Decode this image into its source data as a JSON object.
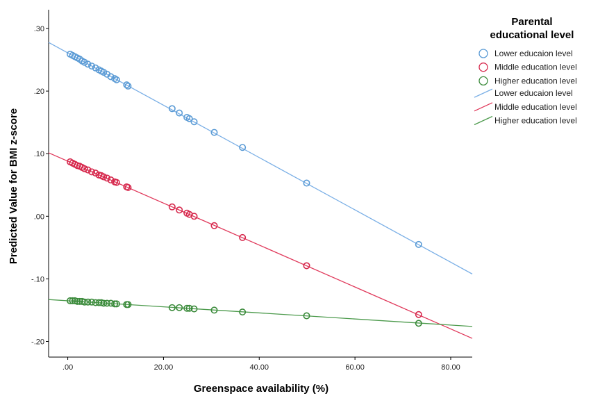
{
  "chart_data": {
    "type": "scatter",
    "title": "",
    "xlabel": "Greenspace availability (%)",
    "ylabel": "Predicted Value for BMI z-score",
    "xlim": [
      -4,
      84.5
    ],
    "ylim": [
      -0.225,
      0.33
    ],
    "x_ticks": [
      0,
      20,
      40,
      60,
      80
    ],
    "x_tick_labels": [
      ".00",
      "20.00",
      "40.00",
      "60.00",
      "80.00"
    ],
    "y_ticks": [
      0.3,
      0.2,
      0.1,
      0.0,
      -0.1,
      -0.2
    ],
    "y_tick_labels": [
      ".30",
      ".20",
      ".10",
      ".00",
      "-.10",
      "-.20"
    ],
    "grid": false,
    "legend": {
      "title": "Parental educational level",
      "title_lines": [
        "Parental",
        "educational level"
      ],
      "placement": "right"
    },
    "series": [
      {
        "name": "Lower educaion level",
        "line_name": "Lower educaion level",
        "color": "#5b9bd5",
        "line_color": "#7aafe6",
        "fit": {
          "intercept": 0.261,
          "slope": -0.00418
        },
        "x": [
          0.5,
          1.0,
          1.5,
          2.0,
          2.5,
          3.0,
          3.5,
          4.2,
          5.0,
          5.8,
          6.5,
          7.0,
          7.5,
          8.2,
          9.0,
          9.8,
          10.2,
          12.3,
          12.6,
          21.8,
          23.3,
          24.9,
          25.4,
          26.4,
          30.6,
          36.5,
          49.9,
          73.3
        ],
        "values": [
          0.259,
          0.257,
          0.255,
          0.253,
          0.251,
          0.248,
          0.246,
          0.243,
          0.24,
          0.237,
          0.234,
          0.232,
          0.23,
          0.227,
          0.223,
          0.22,
          0.218,
          0.21,
          0.208,
          0.172,
          0.165,
          0.158,
          0.156,
          0.151,
          0.134,
          0.11,
          0.053,
          -0.045
        ]
      },
      {
        "name": "Middle education level",
        "line_name": "Middle education level",
        "color": "#d6294d",
        "line_color": "#e0385a",
        "fit": {
          "intercept": 0.088,
          "slope": -0.00335
        },
        "x": [
          0.5,
          1.0,
          1.5,
          2.0,
          2.5,
          3.0,
          3.5,
          4.2,
          5.0,
          5.8,
          6.5,
          7.0,
          7.5,
          8.2,
          9.0,
          9.8,
          10.2,
          12.3,
          12.6,
          21.8,
          23.3,
          24.9,
          25.4,
          26.4,
          30.6,
          36.5,
          49.9,
          73.3
        ],
        "values": [
          0.087,
          0.085,
          0.083,
          0.081,
          0.08,
          0.078,
          0.076,
          0.074,
          0.071,
          0.069,
          0.066,
          0.065,
          0.063,
          0.061,
          0.058,
          0.055,
          0.054,
          0.047,
          0.046,
          0.015,
          0.01,
          0.005,
          0.003,
          0.0,
          -0.015,
          -0.034,
          -0.079,
          -0.157
        ]
      },
      {
        "name": "Higher education level",
        "line_name": "Higher education level",
        "color": "#3a8a3a",
        "line_color": "#4c9a4c",
        "fit": {
          "intercept": -0.135,
          "slope": -0.000485
        },
        "x": [
          0.5,
          1.0,
          1.5,
          2.0,
          2.5,
          3.0,
          3.5,
          4.2,
          5.0,
          5.8,
          6.5,
          7.0,
          7.5,
          8.2,
          9.0,
          9.8,
          10.2,
          12.3,
          12.6,
          21.8,
          23.3,
          24.9,
          25.4,
          26.4,
          30.6,
          36.5,
          49.9,
          73.3
        ],
        "values": [
          -0.135,
          -0.135,
          -0.135,
          -0.136,
          -0.136,
          -0.136,
          -0.137,
          -0.137,
          -0.137,
          -0.138,
          -0.138,
          -0.138,
          -0.139,
          -0.139,
          -0.139,
          -0.14,
          -0.14,
          -0.141,
          -0.141,
          -0.146,
          -0.146,
          -0.147,
          -0.147,
          -0.148,
          -0.15,
          -0.153,
          -0.159,
          -0.171
        ]
      }
    ]
  }
}
